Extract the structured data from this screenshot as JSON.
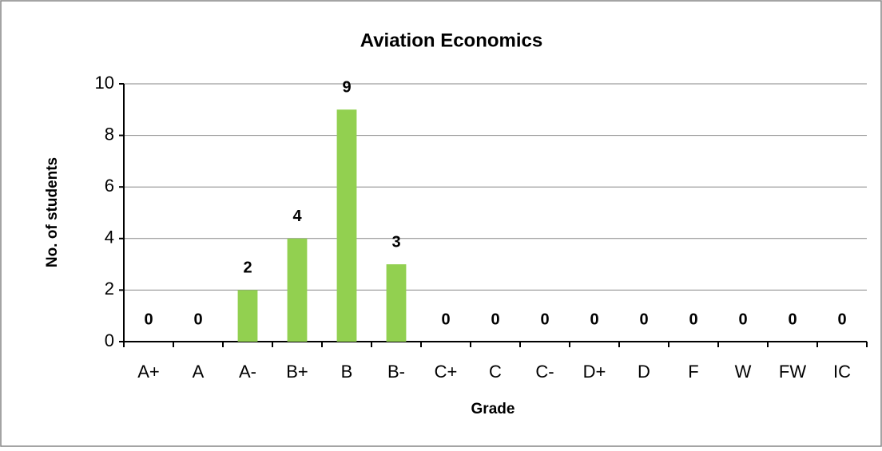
{
  "chart_data": {
    "type": "bar",
    "title": "Aviation Economics",
    "x_label": "Grade",
    "y_label": "No. of students",
    "categories": [
      "A+",
      "A",
      "A-",
      "B+",
      "B",
      "B-",
      "C+",
      "C",
      "C-",
      "D+",
      "D",
      "F",
      "W",
      "FW",
      "IC"
    ],
    "values": [
      0,
      0,
      2,
      4,
      9,
      3,
      0,
      0,
      0,
      0,
      0,
      0,
      0,
      0,
      0
    ],
    "color": "#92d050",
    "ylim": [
      0,
      10
    ],
    "yticks": [
      0,
      2,
      4,
      6,
      8,
      10
    ],
    "grid": true
  }
}
